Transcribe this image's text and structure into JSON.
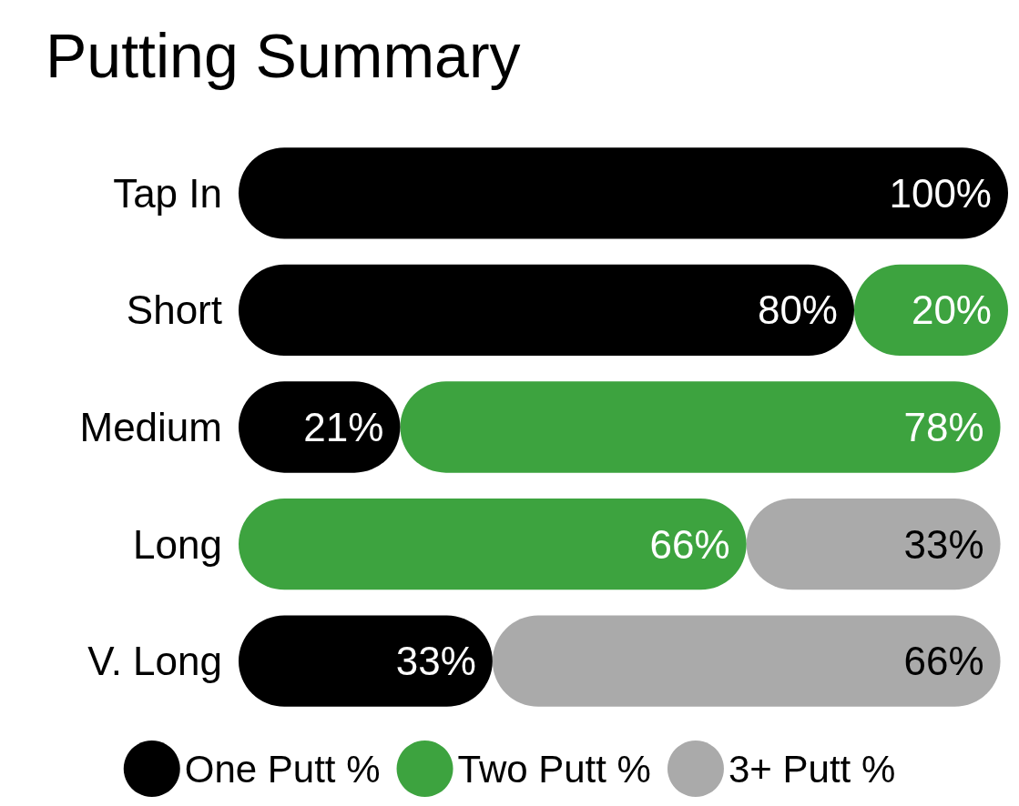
{
  "chart_data": {
    "type": "bar",
    "title": "Putting Summary",
    "orientation": "horizontal",
    "stacked": true,
    "categories": [
      "Tap In",
      "Short",
      "Medium",
      "Long",
      "V. Long"
    ],
    "series": [
      {
        "name": "One Putt %",
        "color": "#000000",
        "values": [
          100,
          80,
          21,
          null,
          33
        ],
        "value_labels": [
          "100%",
          "80%",
          "21%",
          null,
          "33%"
        ]
      },
      {
        "name": "Two Putt %",
        "color": "#3da33f",
        "values": [
          null,
          20,
          78,
          66,
          null
        ],
        "value_labels": [
          null,
          "20%",
          "78%",
          "66%",
          null
        ]
      },
      {
        "name": "3+ Putt %",
        "color": "#aaaaaa",
        "values": [
          null,
          null,
          null,
          33,
          66
        ],
        "value_labels": [
          null,
          null,
          null,
          "33%",
          "66%"
        ]
      }
    ],
    "xlim": [
      0,
      100
    ],
    "tick_labels": "y",
    "legend": "bottom"
  }
}
